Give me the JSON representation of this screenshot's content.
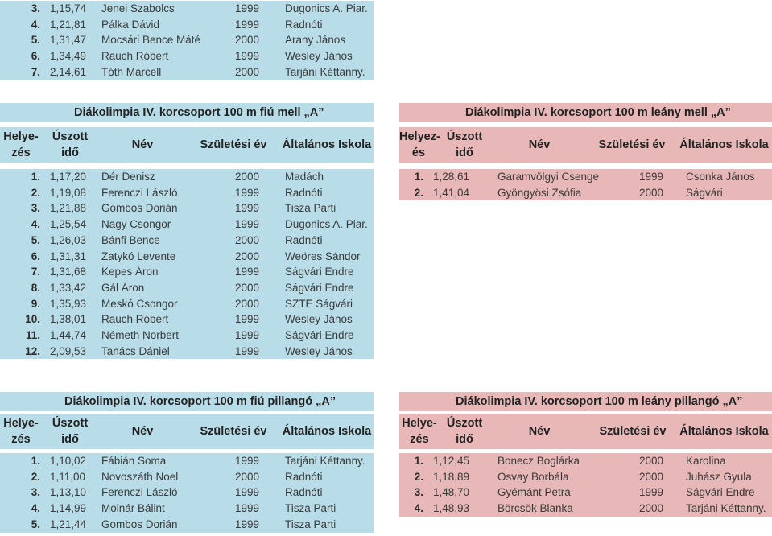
{
  "top_rows": [
    {
      "rank": "3.",
      "time": "1,15,74",
      "name": "Jenei Szabolcs",
      "year": "1999",
      "school": "Dugonics A. Piar."
    },
    {
      "rank": "4.",
      "time": "1,21,81",
      "name": "Pálka Dávid",
      "year": "1999",
      "school": "Radnóti"
    },
    {
      "rank": "5.",
      "time": "1,31,47",
      "name": "Mocsári Bence Máté",
      "year": "2000",
      "school": "Arany János"
    },
    {
      "rank": "6.",
      "time": "1,34,49",
      "name": "Rauch Róbert",
      "year": "1999",
      "school": "Wesley János"
    },
    {
      "rank": "7.",
      "time": "2,14,61",
      "name": "Tóth Marcell",
      "year": "2000",
      "school": "Tarjáni Kéttanny."
    }
  ],
  "boys_breast": {
    "title": "Diákolimpia IV. korcsoport 100 m fiú mell „A”",
    "headers": {
      "rank": "Helye-zés",
      "time": "Úszott idő",
      "name": "Név",
      "year": "Születési év",
      "school": "Általános Iskola"
    },
    "rows": [
      {
        "rank": "1.",
        "time": "1,17,20",
        "name": "Dér Denisz",
        "year": "2000",
        "school": "Madách"
      },
      {
        "rank": "2.",
        "time": "1,19,08",
        "name": "Ferenczi László",
        "year": "1999",
        "school": "Radnóti"
      },
      {
        "rank": "3.",
        "time": "1,21,88",
        "name": "Gombos Dorián",
        "year": "1999",
        "school": "Tisza Parti"
      },
      {
        "rank": "4.",
        "time": "1,25,54",
        "name": "Nagy Csongor",
        "year": "1999",
        "school": "Dugonics A. Piar."
      },
      {
        "rank": "5.",
        "time": "1,26,03",
        "name": "Bánfi Bence",
        "year": "2000",
        "school": "Radnóti"
      },
      {
        "rank": "6.",
        "time": "1,31,31",
        "name": "Zatykó Levente",
        "year": "2000",
        "school": "Weöres Sándor"
      },
      {
        "rank": "7.",
        "time": "1,31,68",
        "name": "Kepes Áron",
        "year": "1999",
        "school": "Ságvári Endre"
      },
      {
        "rank": "8.",
        "time": "1,33,42",
        "name": "Gál Áron",
        "year": "2000",
        "school": "Ságvári Endre"
      },
      {
        "rank": "9.",
        "time": "1,35,93",
        "name": "Meskó Csongor",
        "year": "2000",
        "school": "SZTE Ságvári"
      },
      {
        "rank": "10.",
        "time": "1,38,01",
        "name": "Rauch Róbert",
        "year": "1999",
        "school": "Wesley János"
      },
      {
        "rank": "11.",
        "time": "1,44,74",
        "name": "Németh Norbert",
        "year": "1999",
        "school": "Ságvári Endre"
      },
      {
        "rank": "12.",
        "time": "2,09,53",
        "name": "Tanács Dániel",
        "year": "1999",
        "school": "Wesley János"
      }
    ]
  },
  "girls_breast": {
    "title": "Diákolimpia IV. korcsoport 100 m leány mell „A”",
    "headers": {
      "rank": "Helyez-és",
      "time": "Úszott idő",
      "name": "Név",
      "year": "Születési év",
      "school": "Általános Iskola"
    },
    "rows": [
      {
        "rank": "1.",
        "time": "1,28,61",
        "name": "Garamvölgyi Csenge",
        "year": "1999",
        "school": "Csonka János"
      },
      {
        "rank": "2.",
        "time": "1,41,04",
        "name": "Gyöngyösi Zsófia",
        "year": "2000",
        "school": "Ságvári"
      }
    ]
  },
  "boys_fly": {
    "title": "Diákolimpia IV. korcsoport 100 m fiú pillangó „A”",
    "headers": {
      "rank": "Helye-zés",
      "time": "Úszott idő",
      "name": "Név",
      "year": "Születési év",
      "school": "Általános Iskola"
    },
    "rows": [
      {
        "rank": "1.",
        "time": "1,10,02",
        "name": "Fábián Soma",
        "year": "1999",
        "school": "Tarjáni Kéttanny."
      },
      {
        "rank": "2.",
        "time": "1,11,00",
        "name": "Novoszáth Noel",
        "year": "2000",
        "school": "Radnóti"
      },
      {
        "rank": "3.",
        "time": "1,13,10",
        "name": "Ferenczi László",
        "year": "1999",
        "school": "Radnóti"
      },
      {
        "rank": "4.",
        "time": "1,14,99",
        "name": "Molnár  Bálint",
        "year": "1999",
        "school": "Tisza Parti"
      },
      {
        "rank": "5.",
        "time": "1,21,44",
        "name": "Gombos Dorián",
        "year": "1999",
        "school": "Tisza Parti"
      }
    ]
  },
  "girls_fly": {
    "title": "Diákolimpia IV. korcsoport 100 m leány pillangó „A”",
    "headers": {
      "rank": "Helye-zés",
      "time": "Úszott idő",
      "name": "Név",
      "year": "Születési év",
      "school": "Általános Iskola"
    },
    "rows": [
      {
        "rank": "1.",
        "time": "1,12,45",
        "name": "Bonecz Boglárka",
        "year": "2000",
        "school": "Karolina"
      },
      {
        "rank": "2.",
        "time": "1,18,89",
        "name": "Osvay Borbála",
        "year": "2000",
        "school": "Juhász Gyula"
      },
      {
        "rank": "3.",
        "time": "1,48,70",
        "name": "Gyémánt Petra",
        "year": "1999",
        "school": "Ságvári Endre"
      },
      {
        "rank": "4.",
        "time": "1,48,93",
        "name": "Börcsök Blanka",
        "year": "2000",
        "school": "Tarjáni Kéttanny."
      }
    ]
  }
}
